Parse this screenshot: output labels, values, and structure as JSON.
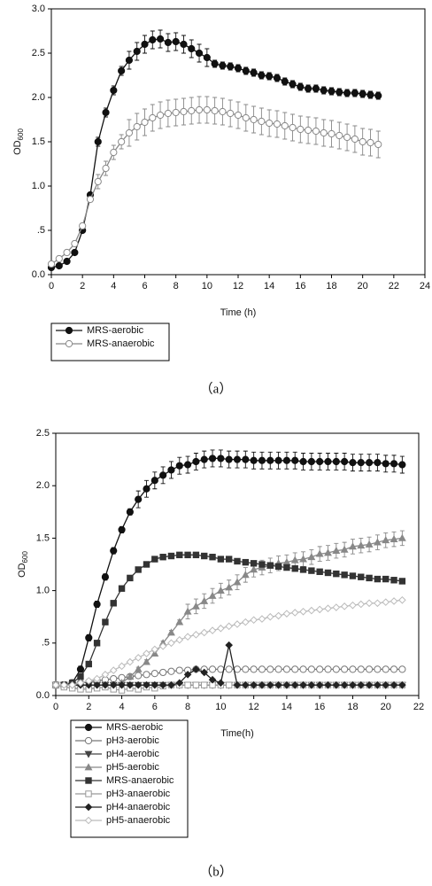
{
  "chart_data": [
    {
      "type": "line",
      "x_label": "Time (h)",
      "y_label": "OD",
      "y_label_sub": "600",
      "caption": "（a）",
      "x": [
        0,
        0.5,
        1,
        1.5,
        2,
        2.5,
        3,
        3.5,
        4,
        4.5,
        5,
        5.5,
        6,
        6.5,
        7,
        7.5,
        8,
        8.5,
        9,
        9.5,
        10,
        10.5,
        11,
        11.5,
        12,
        12.5,
        13,
        13.5,
        14,
        14.5,
        15,
        15.5,
        16,
        16.5,
        17,
        17.5,
        18,
        18.5,
        19,
        19.5,
        20,
        20.5,
        21
      ],
      "xlim": [
        0,
        24
      ],
      "xticks": [
        0,
        2,
        4,
        6,
        8,
        10,
        12,
        14,
        16,
        18,
        20,
        22,
        24
      ],
      "ylim": [
        0,
        3
      ],
      "yticks": [
        {
          "value": 0,
          "label": "0.0"
        },
        {
          "value": 0.5,
          "label": ".5"
        },
        {
          "value": 1,
          "label": "1.0"
        },
        1.5,
        {
          "value": 2,
          "label": "2.0"
        },
        2.5,
        {
          "value": 3,
          "label": "3.0"
        }
      ],
      "series": [
        {
          "name": "MRS-aerobic",
          "color": "#111111",
          "marker": "circle",
          "values": [
            0.08,
            0.1,
            0.15,
            0.25,
            0.5,
            0.9,
            1.5,
            1.83,
            2.08,
            2.3,
            2.42,
            2.52,
            2.6,
            2.65,
            2.66,
            2.62,
            2.63,
            2.6,
            2.55,
            2.5,
            2.45,
            2.38,
            2.36,
            2.35,
            2.33,
            2.3,
            2.28,
            2.25,
            2.24,
            2.22,
            2.18,
            2.15,
            2.12,
            2.1,
            2.1,
            2.08,
            2.07,
            2.06,
            2.05,
            2.05,
            2.04,
            2.03,
            2.02
          ],
          "errors": [
            0.02,
            0.02,
            0.02,
            0.02,
            0.02,
            0.02,
            0.05,
            0.05,
            0.05,
            0.05,
            0.1,
            0.1,
            0.1,
            0.1,
            0.1,
            0.1,
            0.1,
            0.1,
            0.1,
            0.1,
            0.1,
            0.04,
            0.04,
            0.04,
            0.04,
            0.04,
            0.04,
            0.04,
            0.04,
            0.04,
            0.04,
            0.04,
            0.04,
            0.04,
            0.04,
            0.04,
            0.04,
            0.04,
            0.04,
            0.04,
            0.04,
            0.04,
            0.04
          ]
        },
        {
          "name": "MRS-anaerobic",
          "color": "#888888",
          "marker": "circle-open",
          "values": [
            0.12,
            0.18,
            0.25,
            0.35,
            0.55,
            0.85,
            1.05,
            1.2,
            1.38,
            1.5,
            1.6,
            1.67,
            1.72,
            1.77,
            1.8,
            1.82,
            1.83,
            1.84,
            1.85,
            1.86,
            1.86,
            1.85,
            1.84,
            1.82,
            1.8,
            1.77,
            1.75,
            1.73,
            1.71,
            1.7,
            1.68,
            1.66,
            1.64,
            1.63,
            1.62,
            1.6,
            1.59,
            1.57,
            1.55,
            1.53,
            1.5,
            1.49,
            1.47
          ],
          "errors": [
            0.03,
            0.03,
            0.03,
            0.03,
            0.03,
            0.03,
            0.08,
            0.08,
            0.08,
            0.08,
            0.15,
            0.15,
            0.15,
            0.15,
            0.15,
            0.15,
            0.15,
            0.15,
            0.15,
            0.15,
            0.15,
            0.15,
            0.15,
            0.15,
            0.15,
            0.15,
            0.15,
            0.15,
            0.15,
            0.15,
            0.15,
            0.15,
            0.15,
            0.15,
            0.15,
            0.15,
            0.15,
            0.15,
            0.15,
            0.15,
            0.15,
            0.15,
            0.15
          ]
        }
      ]
    },
    {
      "type": "line",
      "x_label": "Time(h)",
      "y_label": "OD",
      "y_label_sub": "600",
      "caption": "（b）",
      "x": [
        0,
        0.5,
        1,
        1.5,
        2,
        2.5,
        3,
        3.5,
        4,
        4.5,
        5,
        5.5,
        6,
        6.5,
        7,
        7.5,
        8,
        8.5,
        9,
        9.5,
        10,
        10.5,
        11,
        11.5,
        12,
        12.5,
        13,
        13.5,
        14,
        14.5,
        15,
        15.5,
        16,
        16.5,
        17,
        17.5,
        18,
        18.5,
        19,
        19.5,
        20,
        20.5,
        21
      ],
      "xlim": [
        0,
        22
      ],
      "xticks": [
        0,
        2,
        4,
        6,
        8,
        10,
        12,
        14,
        16,
        18,
        20,
        22
      ],
      "ylim": [
        0,
        2.5
      ],
      "yticks": [
        {
          "value": 0,
          "label": "0.0"
        },
        {
          "value": 0.5,
          "label": ".5"
        },
        {
          "value": 1,
          "label": "1.0"
        },
        1.5,
        {
          "value": 2,
          "label": "2.0"
        },
        2.5
      ],
      "series": [
        {
          "name": "MRS-aerobic",
          "color": "#111111",
          "marker": "circle",
          "values": [
            0.1,
            0.1,
            0.12,
            0.25,
            0.55,
            0.87,
            1.13,
            1.38,
            1.58,
            1.75,
            1.87,
            1.97,
            2.05,
            2.1,
            2.15,
            2.19,
            2.2,
            2.23,
            2.25,
            2.26,
            2.26,
            2.25,
            2.25,
            2.25,
            2.24,
            2.24,
            2.24,
            2.24,
            2.24,
            2.24,
            2.23,
            2.23,
            2.23,
            2.23,
            2.23,
            2.23,
            2.22,
            2.22,
            2.22,
            2.22,
            2.21,
            2.21,
            2.2
          ],
          "errors": [
            0.03,
            0.03,
            0.03,
            0.03,
            0.03,
            0.03,
            0.03,
            0.03,
            0.03,
            0.03,
            0.08,
            0.08,
            0.08,
            0.08,
            0.08,
            0.08,
            0.08,
            0.08,
            0.08,
            0.08,
            0.08,
            0.08,
            0.08,
            0.08,
            0.08,
            0.08,
            0.08,
            0.08,
            0.08,
            0.08,
            0.08,
            0.08,
            0.08,
            0.08,
            0.08,
            0.08,
            0.08,
            0.08,
            0.08,
            0.08,
            0.08,
            0.08,
            0.08
          ]
        },
        {
          "name": "pH3-aerobic",
          "color": "#777777",
          "marker": "circle-open",
          "values": [
            0.1,
            0.1,
            0.11,
            0.12,
            0.13,
            0.14,
            0.15,
            0.16,
            0.17,
            0.18,
            0.19,
            0.2,
            0.21,
            0.22,
            0.23,
            0.24,
            0.24,
            0.25,
            0.25,
            0.25,
            0.25,
            0.25,
            0.25,
            0.25,
            0.25,
            0.25,
            0.25,
            0.25,
            0.25,
            0.25,
            0.25,
            0.25,
            0.25,
            0.25,
            0.25,
            0.25,
            0.25,
            0.25,
            0.25,
            0.25,
            0.25,
            0.25,
            0.25
          ]
        },
        {
          "name": "pH4-aerobic",
          "color": "#444444",
          "marker": "triangle-down",
          "values": [
            0.1,
            0.1,
            0.1,
            0.1,
            0.1,
            0.1,
            0.1,
            0.1,
            0.1,
            0.1,
            0.1,
            0.1,
            0.1,
            0.1,
            0.1,
            0.1,
            0.1,
            0.1,
            0.1,
            0.1,
            0.1,
            0.1,
            0.1,
            0.1,
            0.1,
            0.1,
            0.1,
            0.1,
            0.1,
            0.1,
            0.1,
            0.1,
            0.1,
            0.1,
            0.1,
            0.1,
            0.1,
            0.1,
            0.1,
            0.1,
            0.1,
            0.1,
            0.1
          ]
        },
        {
          "name": "pH5-aerobic",
          "color": "#888888",
          "marker": "triangle-up",
          "values": [
            0.1,
            0.1,
            0.1,
            0.1,
            0.1,
            0.1,
            0.1,
            0.1,
            0.12,
            0.18,
            0.25,
            0.32,
            0.4,
            0.5,
            0.6,
            0.7,
            0.8,
            0.85,
            0.9,
            0.95,
            1.0,
            1.03,
            1.08,
            1.15,
            1.2,
            1.22,
            1.24,
            1.26,
            1.27,
            1.29,
            1.3,
            1.32,
            1.35,
            1.36,
            1.38,
            1.39,
            1.42,
            1.43,
            1.44,
            1.46,
            1.48,
            1.49,
            1.5
          ],
          "errors": [
            0.02,
            0.02,
            0.02,
            0.02,
            0.02,
            0.02,
            0.02,
            0.02,
            0.02,
            0.02,
            0.02,
            0.02,
            0.02,
            0.02,
            0.02,
            0.02,
            0.07,
            0.07,
            0.07,
            0.07,
            0.07,
            0.07,
            0.07,
            0.07,
            0.07,
            0.07,
            0.07,
            0.07,
            0.07,
            0.07,
            0.07,
            0.07,
            0.07,
            0.07,
            0.07,
            0.07,
            0.07,
            0.07,
            0.07,
            0.07,
            0.07,
            0.07,
            0.07
          ]
        },
        {
          "name": "MRS-anaerobic",
          "color": "#333333",
          "marker": "square",
          "values": [
            0.1,
            0.1,
            0.12,
            0.18,
            0.3,
            0.5,
            0.7,
            0.88,
            1.02,
            1.12,
            1.2,
            1.25,
            1.3,
            1.32,
            1.33,
            1.34,
            1.34,
            1.34,
            1.33,
            1.32,
            1.3,
            1.3,
            1.28,
            1.27,
            1.26,
            1.25,
            1.24,
            1.23,
            1.22,
            1.21,
            1.2,
            1.19,
            1.18,
            1.17,
            1.16,
            1.15,
            1.14,
            1.13,
            1.12,
            1.11,
            1.11,
            1.1,
            1.09
          ]
        },
        {
          "name": "pH3-anaerobic",
          "color": "#999999",
          "marker": "square-open",
          "values": [
            0.1,
            0.08,
            0.07,
            0.06,
            0.06,
            0.07,
            0.08,
            0.06,
            0.05,
            0.07,
            0.06,
            0.08,
            0.07,
            0.09,
            0.1,
            0.1,
            0.1,
            0.1,
            0.1,
            0.1,
            0.1,
            0.1,
            0.1,
            0.1,
            0.1,
            0.1,
            0.1,
            0.1,
            0.1,
            0.1,
            0.1,
            0.1,
            0.1,
            0.1,
            0.1,
            0.1,
            0.1,
            0.1,
            0.1,
            0.1,
            0.1,
            0.1,
            0.1
          ]
        },
        {
          "name": "pH4-anaerobic",
          "color": "#222222",
          "marker": "diamond",
          "values": [
            0.1,
            0.1,
            0.1,
            0.1,
            0.1,
            0.1,
            0.1,
            0.1,
            0.1,
            0.1,
            0.1,
            0.1,
            0.1,
            0.1,
            0.1,
            0.12,
            0.2,
            0.25,
            0.22,
            0.15,
            0.12,
            0.48,
            0.1,
            0.1,
            0.1,
            0.1,
            0.1,
            0.1,
            0.1,
            0.1,
            0.1,
            0.1,
            0.1,
            0.1,
            0.1,
            0.1,
            0.1,
            0.1,
            0.1,
            0.1,
            0.1,
            0.1,
            0.1
          ]
        },
        {
          "name": "pH5-anaerobic",
          "color": "#bbbbbb",
          "marker": "diamond-open",
          "values": [
            0.1,
            0.1,
            0.1,
            0.12,
            0.14,
            0.16,
            0.2,
            0.24,
            0.28,
            0.32,
            0.36,
            0.4,
            0.44,
            0.47,
            0.5,
            0.53,
            0.56,
            0.58,
            0.6,
            0.62,
            0.64,
            0.66,
            0.68,
            0.7,
            0.72,
            0.73,
            0.75,
            0.76,
            0.78,
            0.79,
            0.8,
            0.81,
            0.82,
            0.83,
            0.84,
            0.85,
            0.86,
            0.87,
            0.88,
            0.88,
            0.89,
            0.9,
            0.91
          ]
        }
      ]
    }
  ]
}
